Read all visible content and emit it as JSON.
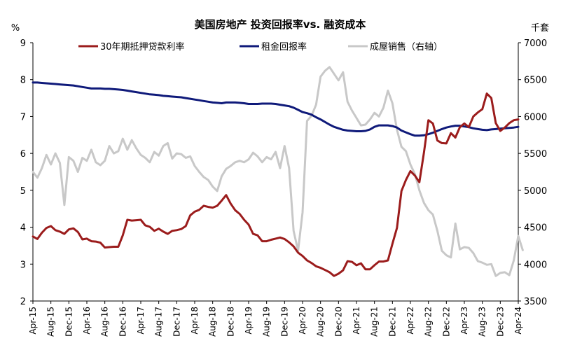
{
  "chart_data": {
    "type": "line",
    "title": "美国房地产 投资回报率vs. 融资成本",
    "left_unit": "%",
    "right_unit": "千套",
    "left_ylim": [
      2,
      9
    ],
    "left_ticks": [
      "2",
      "3",
      "4",
      "5",
      "6",
      "7",
      "8",
      "9"
    ],
    "right_ylim": [
      3500,
      7000
    ],
    "right_ticks": [
      "3500",
      "4000",
      "4500",
      "5000",
      "5500",
      "6000",
      "6500",
      "7000"
    ],
    "x_start": "Apr-15",
    "x_end": "Apr-24",
    "x_tick_labels": [
      "Apr-15",
      "Aug-15",
      "Dec-15",
      "Apr-16",
      "Aug-16",
      "Dec-16",
      "Apr-17",
      "Aug-17",
      "Dec-17",
      "Apr-18",
      "Aug-18",
      "Dec-18",
      "Apr-19",
      "Aug-19",
      "Dec-19",
      "Apr-20",
      "Aug-20",
      "Dec-20",
      "Apr-21",
      "Aug-21",
      "Dec-21",
      "Apr-22",
      "Aug-22",
      "Dec-22",
      "Apr-23",
      "Aug-23",
      "Dec-23",
      "Apr-24"
    ],
    "legend_position": "top",
    "grid": false,
    "series": [
      {
        "name": "30年期抵押贷款利率",
        "axis": "left",
        "color": "#9b1c1c",
        "values": [
          3.75,
          3.68,
          3.85,
          3.98,
          4.03,
          3.92,
          3.88,
          3.82,
          3.94,
          3.97,
          3.87,
          3.67,
          3.69,
          3.62,
          3.61,
          3.58,
          3.45,
          3.46,
          3.47,
          3.47,
          3.78,
          4.2,
          4.18,
          4.19,
          4.2,
          4.05,
          4.01,
          3.9,
          3.96,
          3.88,
          3.82,
          3.9,
          3.92,
          3.95,
          4.03,
          4.32,
          4.42,
          4.47,
          4.58,
          4.55,
          4.53,
          4.58,
          4.72,
          4.87,
          4.64,
          4.46,
          4.36,
          4.2,
          4.07,
          3.82,
          3.78,
          3.62,
          3.62,
          3.66,
          3.69,
          3.72,
          3.68,
          3.59,
          3.48,
          3.31,
          3.22,
          3.1,
          3.03,
          2.94,
          2.9,
          2.84,
          2.78,
          2.68,
          2.74,
          2.83,
          3.08,
          3.06,
          2.97,
          3.02,
          2.86,
          2.86,
          2.97,
          3.07,
          3.07,
          3.1,
          3.55,
          3.98,
          4.98,
          5.28,
          5.52,
          5.4,
          5.22,
          6.02,
          6.9,
          6.81,
          6.35,
          6.28,
          6.27,
          6.55,
          6.43,
          6.71,
          6.81,
          6.71,
          7.0,
          7.11,
          7.2,
          7.62,
          7.5,
          6.82,
          6.61,
          6.7,
          6.82,
          6.9,
          6.92
        ]
      },
      {
        "name": "租金回报率",
        "axis": "left",
        "color": "#0f1a7a",
        "values": [
          7.92,
          7.92,
          7.91,
          7.9,
          7.89,
          7.88,
          7.87,
          7.86,
          7.85,
          7.84,
          7.82,
          7.8,
          7.78,
          7.76,
          7.76,
          7.76,
          7.75,
          7.75,
          7.74,
          7.73,
          7.72,
          7.7,
          7.68,
          7.66,
          7.64,
          7.62,
          7.6,
          7.59,
          7.58,
          7.56,
          7.55,
          7.54,
          7.53,
          7.52,
          7.5,
          7.48,
          7.46,
          7.44,
          7.42,
          7.4,
          7.38,
          7.37,
          7.36,
          7.38,
          7.38,
          7.38,
          7.37,
          7.36,
          7.34,
          7.34,
          7.34,
          7.35,
          7.35,
          7.35,
          7.34,
          7.32,
          7.3,
          7.28,
          7.24,
          7.18,
          7.12,
          7.09,
          7.05,
          6.98,
          6.92,
          6.85,
          6.78,
          6.72,
          6.68,
          6.64,
          6.62,
          6.61,
          6.6,
          6.6,
          6.61,
          6.65,
          6.72,
          6.76,
          6.76,
          6.76,
          6.74,
          6.7,
          6.62,
          6.57,
          6.52,
          6.48,
          6.48,
          6.49,
          6.52,
          6.56,
          6.61,
          6.66,
          6.7,
          6.73,
          6.75,
          6.75,
          6.73,
          6.71,
          6.68,
          6.66,
          6.64,
          6.63,
          6.65,
          6.66,
          6.67,
          6.68,
          6.69,
          6.7,
          6.72
        ]
      },
      {
        "name": "成屋销售（右轴）",
        "axis": "right",
        "color": "#c8c8c8",
        "values": [
          5250,
          5170,
          5300,
          5480,
          5350,
          5500,
          5370,
          4800,
          5450,
          5400,
          5250,
          5440,
          5400,
          5550,
          5380,
          5340,
          5400,
          5600,
          5500,
          5530,
          5700,
          5550,
          5680,
          5570,
          5480,
          5440,
          5380,
          5520,
          5470,
          5600,
          5640,
          5430,
          5500,
          5490,
          5440,
          5460,
          5330,
          5250,
          5180,
          5140,
          5050,
          4990,
          5190,
          5290,
          5330,
          5380,
          5400,
          5380,
          5420,
          5510,
          5460,
          5380,
          5450,
          5420,
          5520,
          5300,
          5600,
          5300,
          4450,
          4180,
          4700,
          5940,
          6010,
          6160,
          6540,
          6620,
          6670,
          6580,
          6490,
          6600,
          6200,
          6080,
          5980,
          5880,
          5890,
          5960,
          6050,
          6000,
          6120,
          6350,
          6180,
          5820,
          5590,
          5530,
          5350,
          5220,
          5000,
          4830,
          4730,
          4670,
          4450,
          4180,
          4120,
          4090,
          4550,
          4200,
          4230,
          4220,
          4150,
          4040,
          4020,
          3990,
          4000,
          3840,
          3880,
          3890,
          3850,
          4050,
          4380,
          4190
        ]
      }
    ]
  }
}
